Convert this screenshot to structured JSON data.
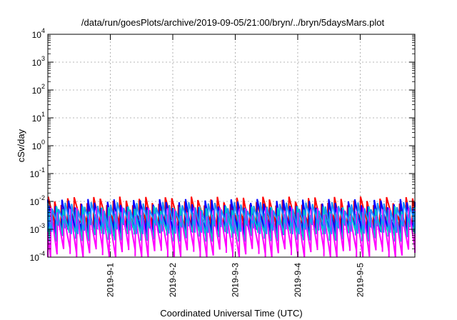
{
  "chart_data": {
    "type": "line",
    "title": "/data/run/goesPlots/archive/2019-09-05/21:00/bryn/../bryn/5daysMars.plot",
    "xlabel": "Coordinated Universal Time (UTC)",
    "ylabel": "cSv/day",
    "y_scale": "log",
    "ylim": [
      0.0001,
      10000
    ],
    "y_ticks": [
      {
        "base": "10",
        "exp": "-4",
        "value": 0.0001
      },
      {
        "base": "10",
        "exp": "-3",
        "value": 0.001
      },
      {
        "base": "10",
        "exp": "-2",
        "value": 0.01
      },
      {
        "base": "10",
        "exp": "-1",
        "value": 0.1
      },
      {
        "base": "10",
        "exp": "0",
        "value": 1
      },
      {
        "base": "10",
        "exp": "1",
        "value": 10
      },
      {
        "base": "10",
        "exp": "2",
        "value": 100
      },
      {
        "base": "10",
        "exp": "3",
        "value": 1000
      },
      {
        "base": "10",
        "exp": "4",
        "value": 10000
      }
    ],
    "xlim": [
      "2019-08-31 00:00",
      "2019-09-05 21:00"
    ],
    "x_ticks": [
      "2019-9-1",
      "2019-9-2",
      "2019-9-3",
      "2019-9-4",
      "2019-9-5"
    ],
    "grid": true,
    "cycle_hours": 2.5,
    "series": [
      {
        "color": "#ff0000",
        "peak": 0.011,
        "min": 0.0017
      },
      {
        "color": "#0000ff",
        "peak": 0.009,
        "min": 0.0009
      },
      {
        "color": "#00c8c8",
        "peak": 0.005,
        "min": 0.0006
      },
      {
        "color": "#ff00ff",
        "peak": 0.0045,
        "min": 0.00015
      },
      {
        "color": "#1e90ff",
        "peak": 0.007,
        "min": 0.0011
      }
    ]
  }
}
